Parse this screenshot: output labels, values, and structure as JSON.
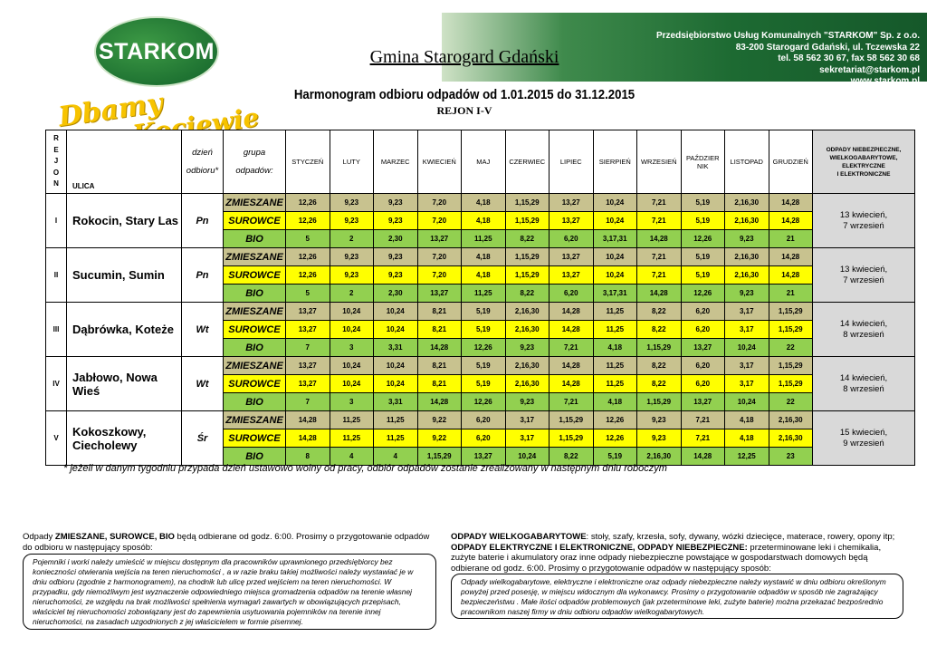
{
  "header": {
    "logo": "STARKOM",
    "slogan": [
      "Dbamy",
      "o Kociewie"
    ],
    "company": [
      "Przedsiębiorstwo Usług Komunalnych \"STARKOM\" Sp. z o.o.",
      "83-200 Starogard Gdański, ul. Tczewska 22",
      "tel. 58 562 30 67, fax 58 562 30 68",
      "sekretariat@starkom.pl",
      "www.starkom.pl"
    ],
    "gmina": "Gmina Starogard Gdański",
    "title": "Harmonogram odbioru odpadów od 1.01.2015 do 31.12.2015",
    "subtitle": "REJON I-V"
  },
  "table": {
    "headers": {
      "rejon": [
        "R",
        "E",
        "J",
        "O",
        "N"
      ],
      "ulica": "ULICA",
      "dzien": [
        "dzień",
        "odbioru*"
      ],
      "grupa": [
        "grupa",
        "odpadów:"
      ],
      "months": [
        "STYCZEŃ",
        "LUTY",
        "MARZEC",
        "KWIECIEŃ",
        "MAJ",
        "CZERWIEC",
        "LIPIEC",
        "SIERPIEŃ",
        "WRZESIEŃ",
        "PAŹDZIER NIK",
        "LISTOPAD",
        "GRUDZIEŃ"
      ],
      "extra": [
        "ODPADY NIEBEZPIECZNE,",
        "WIELKOGABARYTOWE,",
        "ELEKTRYCZNE",
        "I ELEKTRONICZNE"
      ]
    },
    "group_colors": {
      "ZMIESZANE": "#c8c28f",
      "SUROWCE": "#ffff00",
      "BIO": "#92d050"
    },
    "regions": [
      {
        "rejon": "I",
        "ulica": "Rokocin, Stary Las",
        "dzien": "Pn",
        "extra": [
          "13 kwiecień,",
          "7 wrzesień"
        ],
        "rows": [
          {
            "grupa": "ZMIESZANE",
            "values": [
              "12,26",
              "9,23",
              "9,23",
              "7,20",
              "4,18",
              "1,15,29",
              "13,27",
              "10,24",
              "7,21",
              "5,19",
              "2,16,30",
              "14,28"
            ]
          },
          {
            "grupa": "SUROWCE",
            "values": [
              "12,26",
              "9,23",
              "9,23",
              "7,20",
              "4,18",
              "1,15,29",
              "13,27",
              "10,24",
              "7,21",
              "5,19",
              "2,16,30",
              "14,28"
            ]
          },
          {
            "grupa": "BIO",
            "values": [
              "5",
              "2",
              "2,30",
              "13,27",
              "11,25",
              "8,22",
              "6,20",
              "3,17,31",
              "14,28",
              "12,26",
              "9,23",
              "21"
            ]
          }
        ]
      },
      {
        "rejon": "II",
        "ulica": "Sucumin, Sumin",
        "dzien": "Pn",
        "extra": [
          "13 kwiecień,",
          "7 wrzesień"
        ],
        "rows": [
          {
            "grupa": "ZMIESZANE",
            "values": [
              "12,26",
              "9,23",
              "9,23",
              "7,20",
              "4,18",
              "1,15,29",
              "13,27",
              "10,24",
              "7,21",
              "5,19",
              "2,16,30",
              "14,28"
            ]
          },
          {
            "grupa": "SUROWCE",
            "values": [
              "12,26",
              "9,23",
              "9,23",
              "7,20",
              "4,18",
              "1,15,29",
              "13,27",
              "10,24",
              "7,21",
              "5,19",
              "2,16,30",
              "14,28"
            ]
          },
          {
            "grupa": "BIO",
            "values": [
              "5",
              "2",
              "2,30",
              "13,27",
              "11,25",
              "8,22",
              "6,20",
              "3,17,31",
              "14,28",
              "12,26",
              "9,23",
              "21"
            ]
          }
        ]
      },
      {
        "rejon": "III",
        "ulica": "Dąbrówka, Koteże",
        "dzien": "Wt",
        "extra": [
          "14 kwiecień,",
          "8 wrzesień"
        ],
        "rows": [
          {
            "grupa": "ZMIESZANE",
            "values": [
              "13,27",
              "10,24",
              "10,24",
              "8,21",
              "5,19",
              "2,16,30",
              "14,28",
              "11,25",
              "8,22",
              "6,20",
              "3,17",
              "1,15,29"
            ]
          },
          {
            "grupa": "SUROWCE",
            "values": [
              "13,27",
              "10,24",
              "10,24",
              "8,21",
              "5,19",
              "2,16,30",
              "14,28",
              "11,25",
              "8,22",
              "6,20",
              "3,17",
              "1,15,29"
            ]
          },
          {
            "grupa": "BIO",
            "values": [
              "7",
              "3",
              "3,31",
              "14,28",
              "12,26",
              "9,23",
              "7,21",
              "4,18",
              "1,15,29",
              "13,27",
              "10,24",
              "22"
            ]
          }
        ]
      },
      {
        "rejon": "IV",
        "ulica": "Jabłowo, Nowa Wieś",
        "dzien": "Wt",
        "extra": [
          "14 kwiecień,",
          "8 wrzesień"
        ],
        "rows": [
          {
            "grupa": "ZMIESZANE",
            "values": [
              "13,27",
              "10,24",
              "10,24",
              "8,21",
              "5,19",
              "2,16,30",
              "14,28",
              "11,25",
              "8,22",
              "6,20",
              "3,17",
              "1,15,29"
            ]
          },
          {
            "grupa": "SUROWCE",
            "values": [
              "13,27",
              "10,24",
              "10,24",
              "8,21",
              "5,19",
              "2,16,30",
              "14,28",
              "11,25",
              "8,22",
              "6,20",
              "3,17",
              "1,15,29"
            ]
          },
          {
            "grupa": "BIO",
            "values": [
              "7",
              "3",
              "3,31",
              "14,28",
              "12,26",
              "9,23",
              "7,21",
              "4,18",
              "1,15,29",
              "13,27",
              "10,24",
              "22"
            ]
          }
        ]
      },
      {
        "rejon": "V",
        "ulica": "Kokoszkowy, Ciecholewy",
        "dzien": "Śr",
        "extra": [
          "15 kwiecień,",
          "9 wrzesień"
        ],
        "rows": [
          {
            "grupa": "ZMIESZANE",
            "values": [
              "14,28",
              "11,25",
              "11,25",
              "9,22",
              "6,20",
              "3,17",
              "1,15,29",
              "12,26",
              "9,23",
              "7,21",
              "4,18",
              "2,16,30"
            ]
          },
          {
            "grupa": "SUROWCE",
            "values": [
              "14,28",
              "11,25",
              "11,25",
              "9,22",
              "6,20",
              "3,17",
              "1,15,29",
              "12,26",
              "9,23",
              "7,21",
              "4,18",
              "2,16,30"
            ]
          },
          {
            "grupa": "BIO",
            "values": [
              "8",
              "4",
              "4",
              "1,15,29",
              "13,27",
              "10,24",
              "8,22",
              "5,19",
              "2,16,30",
              "14,28",
              "12,25",
              "23"
            ]
          }
        ]
      }
    ]
  },
  "footnote": "* jeżeli w danym tygodniu przypada dzień ustawowo wolny od pracy, odbiór odpadów zostanie zrealizowany w następnym dniu roboczym",
  "left": {
    "intro": [
      {
        "text": "Odpady ",
        "bold": false
      },
      {
        "text": "ZMIESZANE, SUROWCE, BIO",
        "bold": true
      },
      {
        "text": " będą odbierane od godz. 6:00.  Prosimy o przygotowanie odpadów do odbioru w następujący sposób:",
        "bold": false
      }
    ],
    "box": "Pojemniki i worki należy umieścić w miejscu dostępnym dla pracowników uprawnionego przedsiębiorcy bez konieczności otwierania wejścia na teren nieruchomości , a w razie braku takiej możliwości należy wystawiać je w dniu odbioru (zgodnie z harmonogramem), na chodnik lub ulicę przed wejściem na teren nieruchomości. W przypadku, gdy niemożliwym jest wyznaczenie odpowiedniego miejsca gromadzenia odpadów na terenie własnej nieruchomości, ze względu na brak możliwości spełnienia wymagań zawartych w obowiązujących przepisach, właściciel tej nieruchomości zobowiązany jest do zapewnienia usytuowania pojemników na terenie innej nieruchomości, na zasadach uzgodnionych z jej właścicielem w formie pisemnej."
  },
  "right": {
    "intro": [
      {
        "text": "ODPADY WIELKOGABARYTOWE",
        "bold": true
      },
      {
        "text": ": stoły, szafy, krzesła, sofy, dywany, wózki dziecięce, materace, rowery, opony itp; ",
        "bold": false
      },
      {
        "text": "ODPADY ELEKTRYCZNE I ELEKTRONICZNE, ODPADY NIEBEZPIECZNE:",
        "bold": true
      },
      {
        "text": " przeterminowane leki i  chemikalia, zużyte baterie i akumulatory oraz inne odpady niebezpieczne powstające w gospodarstwach domowych będą odbierane od godz. 6:00. Prosimy o przygotowanie odpadów w następujący sposób:",
        "bold": false
      }
    ],
    "box": "Odpady wielkogabarytowe, elektryczne i elektroniczne oraz odpady niebezpieczne należy wystawić  w dniu odbioru określonym powyżej przed posesję, w miejscu widocznym dla wykonawcy. Prosimy o przygotowanie odpadów w sposób nie zagrażający bezpieczeństwu . Małe ilości odpadów problemowych (jak przeterminowe leki, zużyte baterie) można przekazać bezpośrednio pracownikom naszej firmy w dniu odbioru odpadów wielkogabarytowych."
  }
}
